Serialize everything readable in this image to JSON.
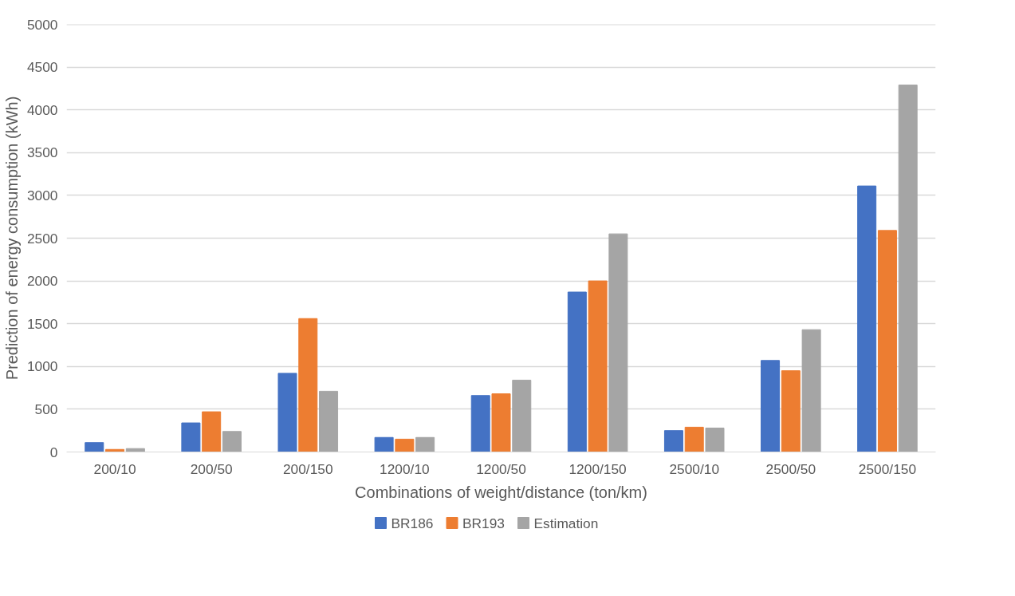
{
  "chart_data": {
    "type": "bar",
    "xlabel": "Combinations of weight/distance (ton/km)",
    "ylabel": "Prediction of energy consumption (kWh)",
    "categories": [
      "200/10",
      "200/50",
      "200/150",
      "1200/10",
      "1200/50",
      "1200/150",
      "2500/10",
      "2500/50",
      "2500/150"
    ],
    "series": [
      {
        "name": "BR186",
        "color": "#4472c4",
        "values": [
          110,
          340,
          920,
          170,
          660,
          1870,
          250,
          1070,
          3110
        ]
      },
      {
        "name": "BR193",
        "color": "#ed7d31",
        "values": [
          30,
          470,
          1560,
          150,
          680,
          2000,
          290,
          950,
          2590
        ]
      },
      {
        "name": "Estimation",
        "color": "#a5a5a5",
        "values": [
          40,
          240,
          710,
          170,
          840,
          2550,
          280,
          1430,
          4290
        ]
      }
    ],
    "ylim": [
      0,
      5000
    ],
    "yticks": [
      0,
      500,
      1000,
      1500,
      2000,
      2500,
      3000,
      3500,
      4000,
      4500,
      5000
    ],
    "grid": "y",
    "legend": "bottom"
  }
}
